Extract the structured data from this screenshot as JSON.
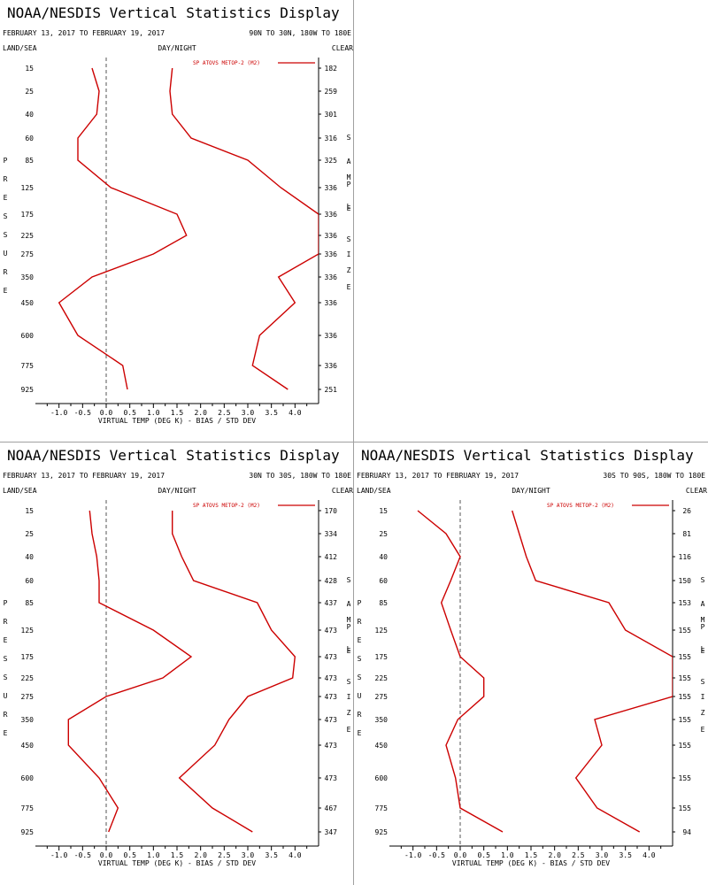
{
  "page": {
    "background": "#ffffff",
    "divider_color": "#a0a0a0",
    "line_color": "#cc0000"
  },
  "panels": [
    {
      "title": "NOAA/NESDIS Vertical Statistics Display",
      "date_range": "FEBRUARY 13, 2017 TO FEBRUARY 19, 2017",
      "region": "90N TO 30N, 180W TO 180E",
      "left_header": "LAND/SEA",
      "center_header": "DAY/NIGHT",
      "right_header": "CLEAR",
      "left_axis_label": "PRESSURE",
      "right_axis_label": "SAMPLE SIZE",
      "xlabel": "VIRTUAL TEMP (DEG K) - BIAS / STD DEV",
      "legend": "SP ATOVS METOP-2 (M2)"
    },
    {
      "title": "NOAA/NESDIS Vertical Statistics Display",
      "date_range": "FEBRUARY 13, 2017 TO FEBRUARY 19, 2017",
      "region": "30N TO 30S, 180W TO 180E",
      "left_header": "LAND/SEA",
      "center_header": "DAY/NIGHT",
      "right_header": "CLEAR",
      "left_axis_label": "PRESSURE",
      "right_axis_label": "SAMPLE SIZE",
      "xlabel": "VIRTUAL TEMP (DEG K) - BIAS / STD DEV",
      "legend": "SP ATOVS METOP-2 (M2)"
    },
    {
      "title": "NOAA/NESDIS Vertical Statistics Display",
      "date_range": "FEBRUARY 13, 2017 TO FEBRUARY 19, 2017",
      "region": "30S TO 90S, 180W TO 180E",
      "left_header": "LAND/SEA",
      "center_header": "DAY/NIGHT",
      "right_header": "CLEAR",
      "left_axis_label": "PRESSURE",
      "right_axis_label": "SAMPLE SIZE",
      "xlabel": "VIRTUAL TEMP (DEG K) - BIAS / STD DEV",
      "legend": "SP ATOVS METOP-2 (M2)"
    }
  ],
  "chart_data": [
    {
      "type": "line",
      "title": "NOAA/NESDIS Vertical Statistics Display",
      "xlabel": "VIRTUAL TEMP (DEG K) - BIAS / STD DEV",
      "ylabel": "PRESSURE",
      "xlim": [
        -1.5,
        4.5
      ],
      "x_ticks": [
        "-1.0",
        "-0.5",
        "0.0",
        "0.5",
        "1.0",
        "1.5",
        "2.0",
        "2.5",
        "3.0",
        "3.5",
        "4.0"
      ],
      "pressure_levels": [
        "15",
        "25",
        "40",
        "60",
        "85",
        "125",
        "175",
        "225",
        "275",
        "350",
        "450",
        "600",
        "775",
        "925"
      ],
      "sample_size": [
        "182",
        "259",
        "301",
        "316",
        "325",
        "336",
        "336",
        "336",
        "336",
        "336",
        "336",
        "336",
        "336",
        "251"
      ],
      "series": [
        {
          "name": "SP ATOVS METOP-2 (M2)",
          "stat": "bias",
          "color": "#cc0000",
          "values": [
            -0.3,
            -0.15,
            -0.2,
            -0.6,
            -0.6,
            0.1,
            1.5,
            1.7,
            1.0,
            -0.3,
            -1.0,
            -0.6,
            0.35,
            0.45
          ]
        },
        {
          "name": "SP ATOVS METOP-2 (M2)",
          "stat": "std_dev",
          "color": "#cc0000",
          "values": [
            1.4,
            1.35,
            1.4,
            1.8,
            3.0,
            3.7,
            4.5,
            4.5,
            4.5,
            3.65,
            4.0,
            3.25,
            3.1,
            3.85
          ]
        }
      ]
    },
    {
      "type": "line",
      "title": "NOAA/NESDIS Vertical Statistics Display",
      "xlabel": "VIRTUAL TEMP (DEG K) - BIAS / STD DEV",
      "ylabel": "PRESSURE",
      "xlim": [
        -1.5,
        4.5
      ],
      "x_ticks": [
        "-1.0",
        "-0.5",
        "0.0",
        "0.5",
        "1.0",
        "1.5",
        "2.0",
        "2.5",
        "3.0",
        "3.5",
        "4.0"
      ],
      "pressure_levels": [
        "15",
        "25",
        "40",
        "60",
        "85",
        "125",
        "175",
        "225",
        "275",
        "350",
        "450",
        "600",
        "775",
        "925"
      ],
      "sample_size": [
        "170",
        "334",
        "412",
        "428",
        "437",
        "473",
        "473",
        "473",
        "473",
        "473",
        "473",
        "473",
        "467",
        "347"
      ],
      "series": [
        {
          "name": "SP ATOVS METOP-2 (M2)",
          "stat": "bias",
          "color": "#cc0000",
          "values": [
            -0.35,
            -0.3,
            -0.2,
            -0.15,
            -0.15,
            1.0,
            1.8,
            1.2,
            0.0,
            -0.8,
            -0.8,
            -0.15,
            0.25,
            0.05
          ]
        },
        {
          "name": "SP ATOVS METOP-2 (M2)",
          "stat": "std_dev",
          "color": "#cc0000",
          "values": [
            1.4,
            1.4,
            1.6,
            1.85,
            3.2,
            3.5,
            4.0,
            3.95,
            3.0,
            2.6,
            2.3,
            1.55,
            2.25,
            3.1
          ]
        }
      ]
    },
    {
      "type": "line",
      "title": "NOAA/NESDIS Vertical Statistics Display",
      "xlabel": "VIRTUAL TEMP (DEG K) - BIAS / STD DEV",
      "ylabel": "PRESSURE",
      "xlim": [
        -1.5,
        4.5
      ],
      "x_ticks": [
        "-1.0",
        "-0.5",
        "0.0",
        "0.5",
        "1.0",
        "1.5",
        "2.0",
        "2.5",
        "3.0",
        "3.5",
        "4.0"
      ],
      "pressure_levels": [
        "15",
        "25",
        "40",
        "60",
        "85",
        "125",
        "175",
        "225",
        "275",
        "350",
        "450",
        "600",
        "775",
        "925"
      ],
      "sample_size": [
        "26",
        "81",
        "116",
        "150",
        "153",
        "155",
        "155",
        "155",
        "155",
        "155",
        "155",
        "155",
        "155",
        "94"
      ],
      "series": [
        {
          "name": "SP ATOVS METOP-2 (M2)",
          "stat": "bias",
          "color": "#cc0000",
          "values": [
            -0.9,
            -0.3,
            0.0,
            -0.2,
            -0.4,
            -0.2,
            0.0,
            0.5,
            0.5,
            -0.05,
            -0.3,
            -0.1,
            0.0,
            0.9
          ]
        },
        {
          "name": "SP ATOVS METOP-2 (M2)",
          "stat": "std_dev",
          "color": "#cc0000",
          "values": [
            1.1,
            1.25,
            1.4,
            1.6,
            3.15,
            3.5,
            4.5,
            4.5,
            4.5,
            2.85,
            3.0,
            2.45,
            2.9,
            3.8
          ]
        }
      ]
    }
  ]
}
